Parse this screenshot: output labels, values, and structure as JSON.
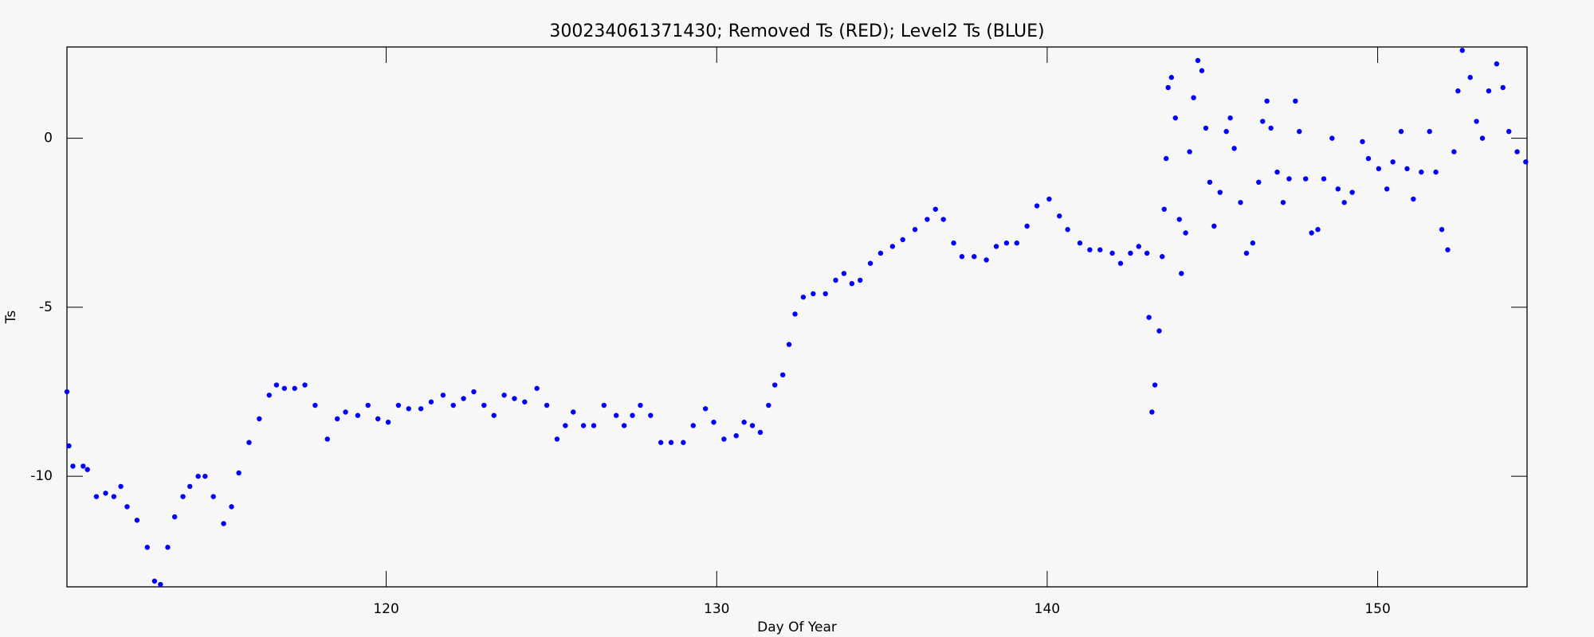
{
  "chart_data": {
    "type": "scatter",
    "title": "300234061371430; Removed Ts (RED); Level2 Ts (BLUE)",
    "x_label": "Day Of Year",
    "y_label": "Ts",
    "color": "#0000ff",
    "xlim": [
      110.34,
      154.52
    ],
    "xticks": [
      120,
      130,
      140,
      150
    ],
    "ylim": [
      -13.27,
      2.7
    ],
    "yticks": [
      -10,
      -5,
      0
    ],
    "x": [
      110.34,
      110.4,
      110.52,
      110.83,
      110.96,
      111.23,
      111.51,
      111.76,
      111.97,
      112.16,
      112.46,
      112.77,
      112.99,
      113.17,
      113.39,
      113.6,
      113.85,
      114.06,
      114.31,
      114.52,
      114.77,
      115.08,
      115.32,
      115.54,
      115.85,
      116.16,
      116.46,
      116.68,
      116.92,
      117.23,
      117.54,
      117.85,
      118.22,
      118.52,
      118.77,
      119.14,
      119.45,
      119.75,
      120.06,
      120.37,
      120.68,
      121.05,
      121.36,
      121.72,
      122.03,
      122.34,
      122.65,
      122.96,
      123.26,
      123.57,
      123.88,
      124.19,
      124.56,
      124.86,
      125.17,
      125.42,
      125.66,
      125.97,
      126.28,
      126.59,
      126.96,
      127.2,
      127.45,
      127.69,
      128.0,
      128.31,
      128.62,
      128.99,
      129.29,
      129.66,
      129.91,
      130.22,
      130.59,
      130.83,
      131.08,
      131.32,
      131.57,
      131.76,
      132.0,
      132.19,
      132.37,
      132.62,
      132.92,
      133.29,
      133.6,
      133.85,
      134.09,
      134.34,
      134.65,
      134.96,
      135.32,
      135.63,
      136.0,
      136.37,
      136.62,
      136.86,
      137.17,
      137.42,
      137.79,
      138.16,
      138.46,
      138.77,
      139.08,
      139.39,
      139.69,
      140.06,
      140.37,
      140.62,
      140.99,
      141.29,
      141.6,
      141.97,
      142.22,
      142.52,
      142.77,
      143.02,
      143.08,
      143.17,
      143.26,
      143.39,
      143.48,
      143.54,
      143.6,
      143.66,
      143.76,
      143.88,
      144.0,
      144.06,
      144.19,
      144.31,
      144.43,
      144.56,
      144.68,
      144.8,
      144.92,
      145.05,
      145.23,
      145.42,
      145.54,
      145.66,
      145.85,
      146.03,
      146.22,
      146.4,
      146.52,
      146.65,
      146.77,
      146.96,
      147.14,
      147.32,
      147.51,
      147.63,
      147.82,
      148.0,
      148.19,
      148.37,
      148.62,
      148.8,
      148.99,
      149.23,
      149.54,
      149.72,
      150.03,
      150.28,
      150.46,
      150.71,
      150.89,
      151.08,
      151.32,
      151.57,
      151.76,
      151.94,
      152.12,
      152.31,
      152.43,
      152.56,
      152.8,
      152.99,
      153.17,
      153.36,
      153.6,
      153.79,
      153.97,
      154.22,
      154.48
    ],
    "values": [
      -7.5,
      -9.1,
      -9.7,
      -9.7,
      -9.8,
      -10.6,
      -10.5,
      -10.6,
      -10.3,
      -10.9,
      -11.3,
      -12.1,
      -13.1,
      -13.2,
      -12.1,
      -11.2,
      -10.6,
      -10.3,
      -10.0,
      -10.0,
      -10.6,
      -11.4,
      -10.9,
      -9.9,
      -9.0,
      -8.3,
      -7.6,
      -7.3,
      -7.4,
      -7.4,
      -7.3,
      -7.9,
      -8.9,
      -8.3,
      -8.1,
      -8.2,
      -7.9,
      -8.3,
      -8.4,
      -7.9,
      -8.0,
      -8.0,
      -7.8,
      -7.6,
      -7.9,
      -7.7,
      -7.5,
      -7.9,
      -8.2,
      -7.6,
      -7.7,
      -7.8,
      -7.4,
      -7.9,
      -8.9,
      -8.5,
      -8.1,
      -8.5,
      -8.5,
      -7.9,
      -8.2,
      -8.5,
      -8.2,
      -7.9,
      -8.2,
      -9.0,
      -9.0,
      -9.0,
      -8.5,
      -8.0,
      -8.4,
      -8.9,
      -8.8,
      -8.4,
      -8.5,
      -8.7,
      -7.9,
      -7.3,
      -7.0,
      -6.1,
      -5.2,
      -4.7,
      -4.6,
      -4.6,
      -4.2,
      -4.0,
      -4.3,
      -4.2,
      -3.7,
      -3.4,
      -3.2,
      -3.0,
      -2.7,
      -2.4,
      -2.1,
      -2.4,
      -3.1,
      -3.5,
      -3.5,
      -3.6,
      -3.2,
      -3.1,
      -3.1,
      -2.6,
      -2.0,
      -1.8,
      -2.3,
      -2.7,
      -3.1,
      -3.3,
      -3.3,
      -3.4,
      -3.7,
      -3.4,
      -3.2,
      -3.4,
      -5.3,
      -8.1,
      -7.3,
      -5.7,
      -3.5,
      -2.1,
      -0.6,
      1.5,
      1.8,
      0.6,
      -2.4,
      -4.0,
      -2.8,
      -0.4,
      1.2,
      2.3,
      2.0,
      0.3,
      -1.3,
      -2.6,
      -1.6,
      0.2,
      0.6,
      -0.3,
      -1.9,
      -3.4,
      -3.1,
      -1.3,
      0.5,
      1.1,
      0.3,
      -1.0,
      -1.9,
      -1.2,
      1.1,
      0.2,
      -1.2,
      -2.8,
      -2.7,
      -1.2,
      0.0,
      -1.5,
      -1.9,
      -1.6,
      -0.1,
      -0.6,
      -0.9,
      -1.5,
      -0.7,
      0.2,
      -0.9,
      -1.8,
      -1.0,
      0.2,
      -1.0,
      -2.7,
      -3.3,
      -0.4,
      1.4,
      2.6,
      1.8,
      0.5,
      0.0,
      1.4,
      2.2,
      1.5,
      0.2,
      -0.4,
      -0.7
    ]
  }
}
